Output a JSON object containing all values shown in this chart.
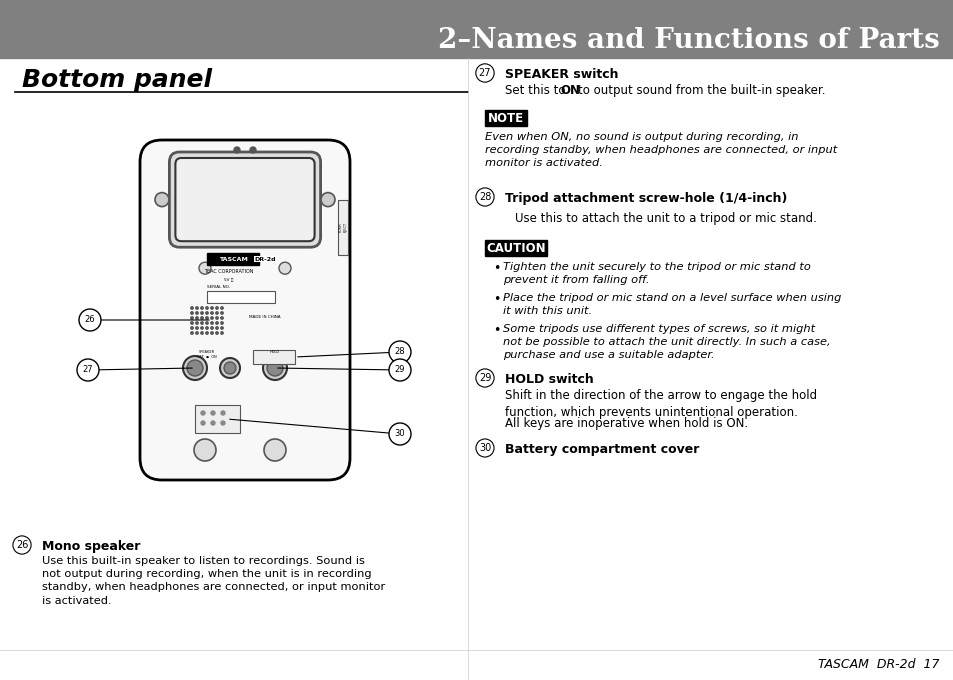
{
  "bg_color": "#ffffff",
  "header_bg": "#808080",
  "header_text": "2–Names and Functions of Parts",
  "header_text_color": "#ffffff",
  "section_title": "Bottom panel",
  "section_title_color": "#000000",
  "note_bg": "#000000",
  "note_text_color": "#ffffff",
  "caution_bg": "#000000",
  "caution_text_color": "#ffffff",
  "body_text_color": "#000000",
  "footer_text": "TASCAM  DR-2d  17",
  "items": [
    {
      "num": "26",
      "title": "Mono speaker",
      "title_bold": true,
      "body": "Use this built-in speaker to listen to recordings. Sound is\nnot output during recording, when the unit is in recording\nstandby, when headphones are connected, or input monitor\nis activated."
    },
    {
      "num": "27",
      "title": "SPEAKER switch",
      "title_bold": true,
      "body": "Set this to ON to output sound from the built-in speaker."
    },
    {
      "num": "28",
      "title": "Tripod attachment screw-hole (1/4-inch)",
      "title_bold": true,
      "body": "Use this to attach the unit to a tripod or mic stand."
    },
    {
      "num": "29",
      "title": "HOLD switch",
      "title_bold": true,
      "body": "Shift in the direction of the arrow to engage the hold\nfunction, which prevents unintentional operation.\n\nAll keys are inoperative when hold is ON."
    },
    {
      "num": "30",
      "title": "Battery compartment cover",
      "title_bold": true,
      "body": ""
    }
  ],
  "note_label": "NOTE",
  "note_body": "Even when ON, no sound is output during recording, in\nrecording standby, when headphones are connected, or input\nmonitor is activated.",
  "caution_label": "CAUTION",
  "caution_bullets": [
    "Tighten the unit securely to the tripod or mic stand to\nprevent it from falling off.",
    "Place the tripod or mic stand on a level surface when using\nit with this unit.",
    "Some tripods use different types of screws, so it might\nnot be possible to attach the unit directly. In such a case,\npurchase and use a suitable adapter."
  ]
}
